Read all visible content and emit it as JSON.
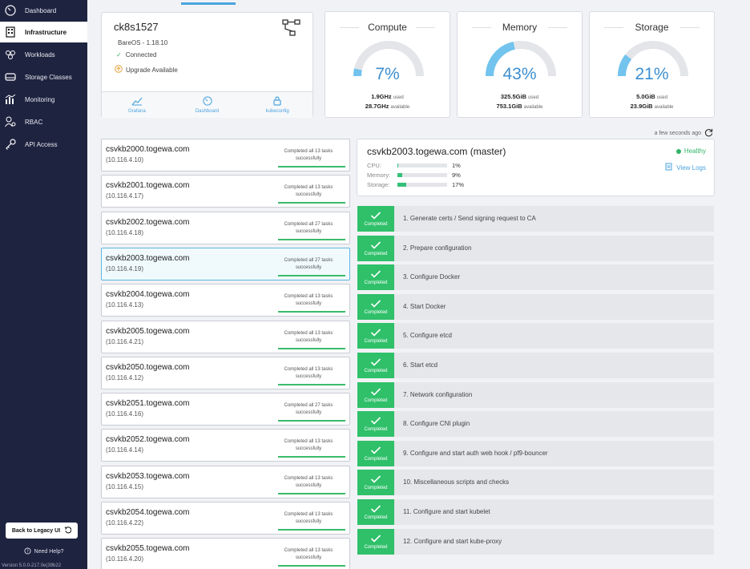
{
  "sidebar": {
    "items": [
      {
        "label": "Dashboard",
        "icon": "dashboard-gauge-icon"
      },
      {
        "label": "Infrastructure",
        "icon": "building-icon",
        "active": true
      },
      {
        "label": "Workloads",
        "icon": "workloads-icon"
      },
      {
        "label": "Storage Classes",
        "icon": "storage-drive-icon"
      },
      {
        "label": "Monitoring",
        "icon": "monitoring-chart-icon"
      },
      {
        "label": "RBAC",
        "icon": "users-key-icon"
      },
      {
        "label": "API Access",
        "icon": "key-icon"
      }
    ],
    "legacy_button": "Back to Legacy UI",
    "need_help": "Need Help?",
    "version": "Version 5.0.0-217.0e(39b22"
  },
  "cluster": {
    "name": "ck8s1527",
    "os": "BareOS - 1.18.10",
    "status": "Connected",
    "upgrade": "Upgrade Available",
    "links": {
      "grafana": "Grafana",
      "dashboard": "Dashboard",
      "kubeconfig": "kubeconfig"
    }
  },
  "gauges": {
    "compute": {
      "title": "Compute",
      "percent_label": "7%",
      "percent": 7,
      "used": "1.9GHz",
      "used_suffix": "used",
      "available": "28.7GHz",
      "available_suffix": "available"
    },
    "memory": {
      "title": "Memory",
      "percent_label": "43%",
      "percent": 43,
      "used": "325.5GiB",
      "used_suffix": "used",
      "available": "753.1GiB",
      "available_suffix": "available"
    },
    "storage": {
      "title": "Storage",
      "percent_label": "21%",
      "percent": 21,
      "used": "5.0GiB",
      "used_suffix": "used",
      "available": "23.9GiB",
      "available_suffix": "available"
    }
  },
  "refresh_text": "a few seconds ago",
  "nodes": [
    {
      "name": "csvkb2000.togewa.com",
      "ip": "(10.116.4.10)",
      "status": "Completed all 13 tasks successfully"
    },
    {
      "name": "csvkb2001.togewa.com",
      "ip": "(10.116.4.17)",
      "status": "Completed all 13 tasks successfully"
    },
    {
      "name": "csvkb2002.togewa.com",
      "ip": "(10.116.4.18)",
      "status": "Completed all 27 tasks successfully"
    },
    {
      "name": "csvkb2003.togewa.com",
      "ip": "(10.116.4.19)",
      "status": "Completed all 27 tasks successfully",
      "selected": true
    },
    {
      "name": "csvkb2004.togewa.com",
      "ip": "(10.116.4.13)",
      "status": "Completed all 13 tasks successfully"
    },
    {
      "name": "csvkb2005.togewa.com",
      "ip": "(10.116.4.21)",
      "status": "Completed all 13 tasks successfully"
    },
    {
      "name": "csvkb2050.togewa.com",
      "ip": "(10.116.4.12)",
      "status": "Completed all 13 tasks successfully"
    },
    {
      "name": "csvkb2051.togewa.com",
      "ip": "(10.116.4.16)",
      "status": "Completed all 27 tasks successfully"
    },
    {
      "name": "csvkb2052.togewa.com",
      "ip": "(10.116.4.14)",
      "status": "Completed all 13 tasks successfully"
    },
    {
      "name": "csvkb2053.togewa.com",
      "ip": "(10.116.4.15)",
      "status": "Completed all 13 tasks successfully"
    },
    {
      "name": "csvkb2054.togewa.com",
      "ip": "(10.116.4.22)",
      "status": "Completed all 13 tasks successfully"
    },
    {
      "name": "csvkb2055.togewa.com",
      "ip": "(10.116.4.20)",
      "status": "Completed all 13 tasks successfully"
    }
  ],
  "detail": {
    "title": "csvkb2003.togewa.com (master)",
    "health": "Healthy",
    "view_logs": "View Logs",
    "metrics": [
      {
        "label": "CPU:",
        "value": "1%",
        "percent": 1
      },
      {
        "label": "Memory:",
        "value": "9%",
        "percent": 9
      },
      {
        "label": "Storage:",
        "value": "17%",
        "percent": 17
      }
    ]
  },
  "step_status": "Completed",
  "steps": [
    "1. Generate certs / Send signing request to CA",
    "2. Prepare configuration",
    "3. Configure Docker",
    "4. Start Docker",
    "5. Configure etcd",
    "6. Start etcd",
    "7. Network configuration",
    "8. Configure CNI plugin",
    "9. Configure and start auth web hook / pf9-bouncer",
    "10. Miscellaneous scripts and checks",
    "11. Configure and start kubelet",
    "12. Configure and start kube-proxy"
  ],
  "colors": {
    "sidebar": "#1e2340",
    "accent": "#4aa3df",
    "success": "#2fc069"
  }
}
